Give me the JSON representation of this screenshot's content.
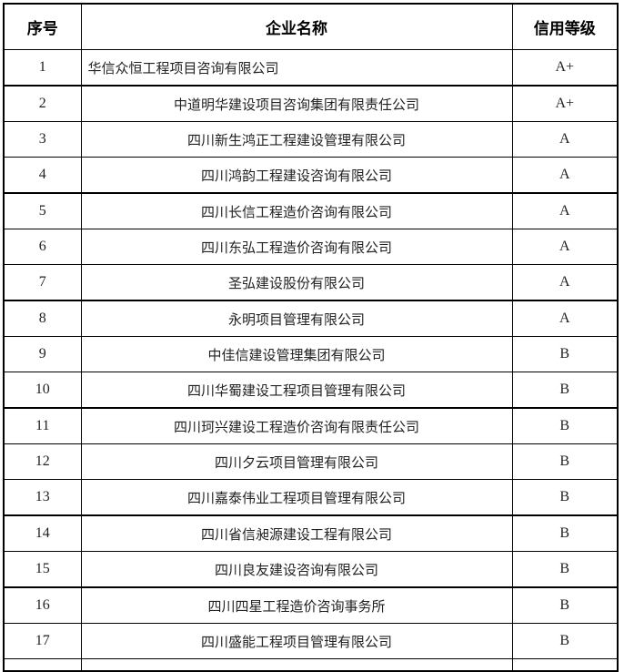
{
  "page": {
    "background_color": "#ffffff",
    "border_color": "#000000",
    "text_color": "#222222"
  },
  "table": {
    "headers": {
      "index": "序号",
      "company": "企业名称",
      "rating": "信用等级"
    },
    "rows": [
      {
        "index": "1",
        "company": "华信众恒工程项目咨询有限公司",
        "rating": "A+"
      },
      {
        "index": "2",
        "company": "中道明华建设项目咨询集团有限责任公司",
        "rating": "A+"
      },
      {
        "index": "3",
        "company": "四川新生鸿正工程建设管理有限公司",
        "rating": "A"
      },
      {
        "index": "4",
        "company": "四川鸿韵工程建设咨询有限公司",
        "rating": "A"
      },
      {
        "index": "5",
        "company": "四川长信工程造价咨询有限公司",
        "rating": "A"
      },
      {
        "index": "6",
        "company": "四川东弘工程造价咨询有限公司",
        "rating": "A"
      },
      {
        "index": "7",
        "company": "圣弘建设股份有限公司",
        "rating": "A"
      },
      {
        "index": "8",
        "company": "永明项目管理有限公司",
        "rating": "A"
      },
      {
        "index": "9",
        "company": "中佳信建设管理集团有限公司",
        "rating": "B"
      },
      {
        "index": "10",
        "company": "四川华蜀建设工程项目管理有限公司",
        "rating": "B"
      },
      {
        "index": "11",
        "company": "四川珂兴建设工程造价咨询有限责任公司",
        "rating": "B"
      },
      {
        "index": "12",
        "company": "四川夕云项目管理有限公司",
        "rating": "B"
      },
      {
        "index": "13",
        "company": "四川嘉泰伟业工程项目管理有限公司",
        "rating": "B"
      },
      {
        "index": "14",
        "company": "四川省信昶源建设工程有限公司",
        "rating": "B"
      },
      {
        "index": "15",
        "company": "四川良友建设咨询有限公司",
        "rating": "B"
      },
      {
        "index": "16",
        "company": "四川四星工程造价咨询事务所",
        "rating": "B"
      },
      {
        "index": "17",
        "company": "四川盛能工程项目管理有限公司",
        "rating": "B"
      }
    ]
  }
}
